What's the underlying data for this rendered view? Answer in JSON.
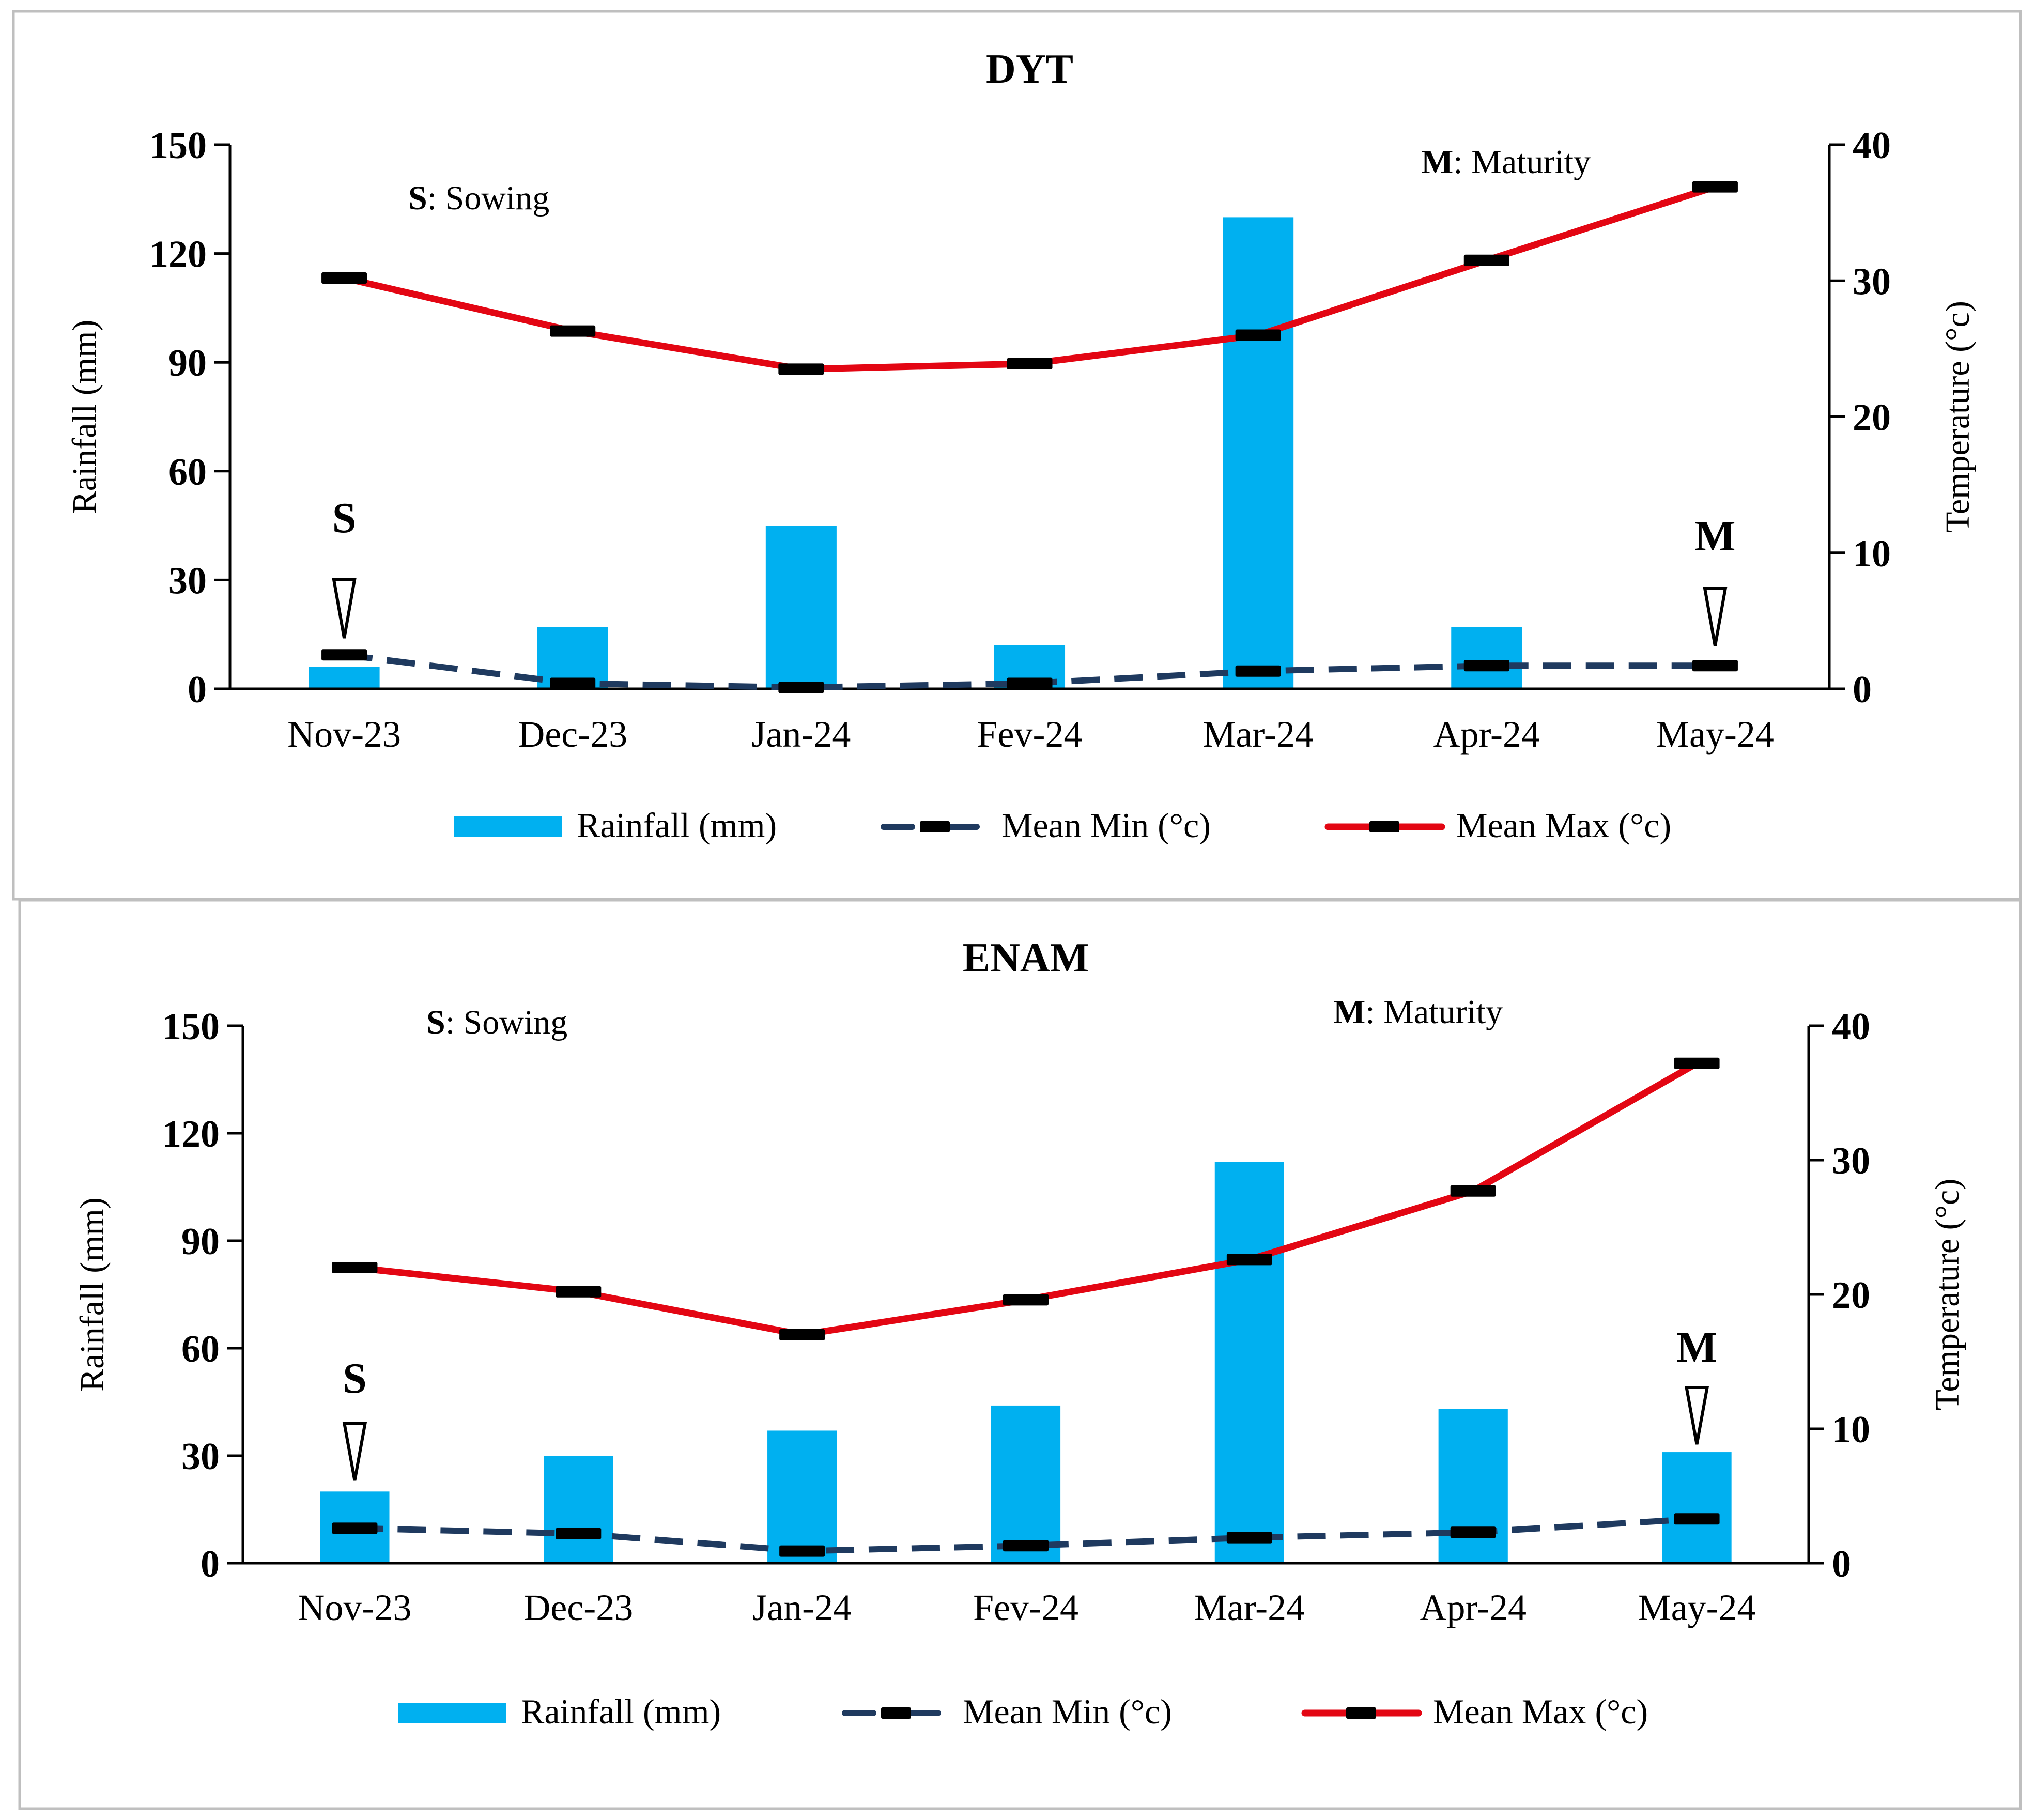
{
  "chart_data": [
    {
      "type": "bar+line",
      "title": "DYT",
      "categories": [
        "Nov-23",
        "Dec-23",
        "Jan-24",
        "Fev-24",
        "Mar-24",
        "Apr-24",
        "May-24"
      ],
      "left_axis": {
        "label": "Rainfall (mm)",
        "range": [
          0,
          150
        ],
        "ticks": [
          0,
          30,
          60,
          90,
          120,
          150
        ]
      },
      "right_axis": {
        "label": "Temperature  (°c)",
        "range": [
          0,
          40
        ],
        "ticks": [
          0,
          10,
          20,
          30,
          40
        ]
      },
      "series": [
        {
          "name": "Rainfall (mm)",
          "kind": "bar",
          "axis": "left",
          "color": "#00B0F0",
          "values": [
            6,
            17,
            45,
            12,
            130,
            17,
            0
          ]
        },
        {
          "name": "Mean Min (°c)",
          "kind": "line",
          "axis": "right",
          "color": "#1F3A5F",
          "style": "dashed",
          "values": [
            2.5,
            0.4,
            0.1,
            0.4,
            1.3,
            1.7,
            1.7
          ]
        },
        {
          "name": "Mean Max (°c)",
          "kind": "line",
          "axis": "right",
          "color": "#E30613",
          "style": "solid",
          "values": [
            30.2,
            26.3,
            23.5,
            23.9,
            26.0,
            31.5,
            36.9
          ]
        }
      ],
      "annotations": {
        "sowing_note_key": "S",
        "sowing_note_text": ": Sowing",
        "maturity_note_key": "M",
        "maturity_note_text": ": Maturity",
        "sowing_marker": {
          "label": "S",
          "category": "Nov-23"
        },
        "maturity_marker": {
          "label": "M",
          "category": "May-24"
        }
      }
    },
    {
      "type": "bar+line",
      "title": "ENAM",
      "categories": [
        "Nov-23",
        "Dec-23",
        "Jan-24",
        "Fev-24",
        "Mar-24",
        "Apr-24",
        "May-24"
      ],
      "left_axis": {
        "label": "Rainfall (mm)",
        "range": [
          0,
          150
        ],
        "ticks": [
          0,
          30,
          60,
          90,
          120,
          150
        ]
      },
      "right_axis": {
        "label": "Temperature  (°c)",
        "range": [
          0,
          40
        ],
        "ticks": [
          0,
          10,
          20,
          30,
          40
        ]
      },
      "series": [
        {
          "name": "Rainfall (mm)",
          "kind": "bar",
          "axis": "left",
          "color": "#00B0F0",
          "values": [
            20,
            30,
            37,
            44,
            112,
            43,
            31
          ]
        },
        {
          "name": "Mean Min (°c)",
          "kind": "line",
          "axis": "right",
          "color": "#1F3A5F",
          "style": "dashed",
          "values": [
            2.6,
            2.2,
            0.9,
            1.3,
            1.9,
            2.3,
            3.3
          ]
        },
        {
          "name": "Mean Max (°c)",
          "kind": "line",
          "axis": "right",
          "color": "#E30613",
          "style": "solid",
          "values": [
            22.0,
            20.2,
            17.0,
            19.6,
            22.6,
            27.7,
            37.2
          ]
        }
      ],
      "annotations": {
        "sowing_note_key": "S",
        "sowing_note_text": ": Sowing",
        "maturity_note_key": "M",
        "maturity_note_text": ": Maturity",
        "sowing_marker": {
          "label": "S",
          "category": "Nov-23"
        },
        "maturity_marker": {
          "label": "M",
          "category": "May-24"
        }
      }
    }
  ]
}
